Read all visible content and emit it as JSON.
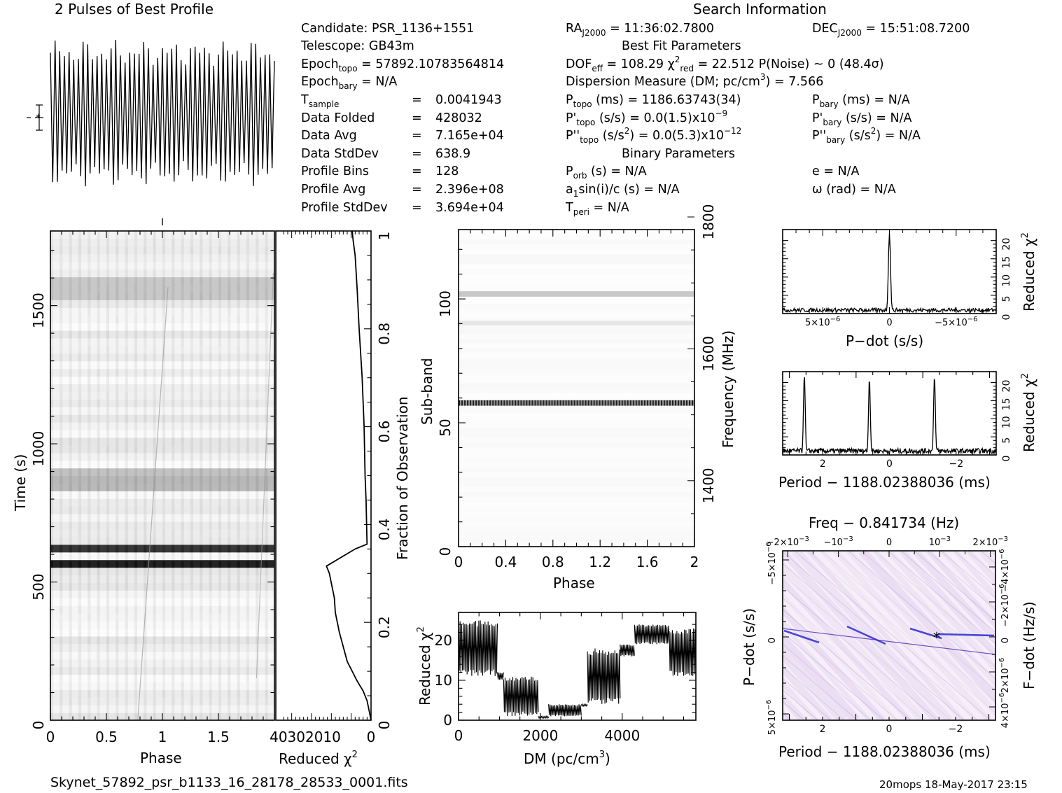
{
  "profile_title": "2 Pulses of Best Profile",
  "search_title": "Search Information",
  "footer_file": "Skynet_57892_psr_b1133_16_28178_28533_0001.fits",
  "footer_stamp": "20mops 18-May-2017 23:15",
  "info": {
    "candidate": "PSR_1136+1551",
    "telescope": "GB43m",
    "epoch_topo": "57892.10783564814",
    "epoch_bary": "N/A",
    "t_sample": "0.0041943",
    "data_folded": "428032",
    "data_avg": "7.165e+04",
    "data_stddev": "638.9",
    "profile_bins": "128",
    "profile_avg": "2.396e+08",
    "profile_stddev": "3.694e+04",
    "ra": "11:36:02.7800",
    "dec": "15:51:08.7200",
    "best_fit_header": "Best Fit Parameters",
    "dof_eff": "108.29",
    "chi2_red": "22.512",
    "p_noise": "0",
    "sigma": "(48.4σ)",
    "dm": "7.566",
    "p_topo_ms": "1186.63743(34)",
    "pd_topo": "0.0(1.5)",
    "pd_topo_exp": "−9",
    "pdd_topo": "0.0(5.3)",
    "pdd_topo_exp": "−12",
    "p_bary_ms": "N/A",
    "pd_bary": "N/A",
    "pdd_bary": "N/A",
    "binary_header": "Binary Parameters",
    "p_orb": "N/A",
    "a1sini": "N/A",
    "t_peri": "N/A",
    "e": "N/A",
    "omega": "N/A"
  },
  "chart_data": [
    {
      "id": "profile",
      "type": "line",
      "title": "2 Pulses of Best Profile",
      "xlim": [
        0,
        2
      ],
      "pulses": 2,
      "cycles_per_pulse": 24
    },
    {
      "id": "time_phase",
      "type": "heatmap",
      "xlabel": "Phase",
      "ylabel": "Time (s)",
      "xlim": [
        0,
        2
      ],
      "ylim": [
        0,
        1770
      ],
      "xticks": [
        "0",
        "0.5",
        "1",
        "1.5"
      ],
      "yticks": [
        "0",
        "500",
        "1000",
        "1500"
      ],
      "dark_band_times": [
        580,
        620
      ]
    },
    {
      "id": "chi2_vs_time",
      "type": "line",
      "xlabel": "Reduced χ",
      "ylabel": "Fraction of Observation",
      "xlim": [
        48,
        0
      ],
      "ylim": [
        0,
        1
      ],
      "xtick_labels": "40302010",
      "xtick_zero": "0",
      "yticks": [
        "0",
        "0.2",
        "0.4",
        "0.6",
        "0.8",
        "1"
      ],
      "points": [
        [
          0,
          0
        ],
        [
          1,
          0.02
        ],
        [
          2,
          0.04
        ],
        [
          4,
          0.06
        ],
        [
          7,
          0.08
        ],
        [
          12,
          0.12
        ],
        [
          16,
          0.18
        ],
        [
          18,
          0.22
        ],
        [
          18.5,
          0.25
        ],
        [
          20,
          0.28
        ],
        [
          21,
          0.3
        ],
        [
          22,
          0.31
        ],
        [
          22.5,
          0.315
        ],
        [
          8,
          0.35
        ],
        [
          2,
          0.36
        ],
        [
          2.5,
          0.45
        ],
        [
          3,
          0.5
        ],
        [
          3.5,
          0.6
        ],
        [
          4.5,
          0.7
        ],
        [
          6,
          0.8
        ],
        [
          7,
          0.88
        ],
        [
          8,
          0.95
        ],
        [
          9,
          0.98
        ],
        [
          9.5,
          1.0
        ]
      ]
    },
    {
      "id": "subband_phase",
      "type": "heatmap",
      "xlabel": "Phase",
      "ylabel": "Sub-band",
      "y2label": "Frequency (MHz)",
      "xlim": [
        0,
        2
      ],
      "ylim": [
        0,
        128
      ],
      "xticks": [
        "0",
        "0.4",
        "0.8",
        "1.2",
        "1.6",
        "2"
      ],
      "yticks": [
        "0",
        "50",
        "100"
      ],
      "y2ticks": [
        "1400",
        "1600",
        "1800"
      ],
      "rfi_subbands": [
        58,
        102,
        90
      ]
    },
    {
      "id": "chi2_vs_dm",
      "type": "line",
      "xlabel": "DM (pc/cm",
      "ylabel": "Reduced χ",
      "xlim": [
        0,
        5800
      ],
      "ylim": [
        0,
        27
      ],
      "xticks": [
        "0",
        "2000",
        "4000"
      ],
      "yticks": [
        "0",
        "10",
        "20"
      ],
      "segments": [
        {
          "dm": [
            0,
            950
          ],
          "lo": 11,
          "hi": 25
        },
        {
          "dm": [
            950,
            1100
          ],
          "lo": 10,
          "hi": 12
        },
        {
          "dm": [
            1100,
            1950
          ],
          "lo": 1,
          "hi": 11
        },
        {
          "dm": [
            1950,
            2200
          ],
          "lo": 0.5,
          "hi": 1
        },
        {
          "dm": [
            2200,
            3000
          ],
          "lo": 1,
          "hi": 4
        },
        {
          "dm": [
            3000,
            3150
          ],
          "lo": 3.5,
          "hi": 4
        },
        {
          "dm": [
            3150,
            3950
          ],
          "lo": 4,
          "hi": 18
        },
        {
          "dm": [
            3950,
            4300
          ],
          "lo": 16,
          "hi": 19
        },
        {
          "dm": [
            4300,
            5150
          ],
          "lo": 19,
          "hi": 24
        },
        {
          "dm": [
            5150,
            5800
          ],
          "lo": 11,
          "hi": 23
        }
      ]
    },
    {
      "id": "chi2_vs_pdot",
      "type": "line",
      "xlabel": "P−dot (s/s)",
      "ylabel": "Reduced χ",
      "xlim": [
        8e-06,
        -8e-06
      ],
      "ylim": [
        0,
        23
      ],
      "xticks": [
        "5×10",
        "0",
        "−5×10"
      ],
      "xtick_exp": "−6",
      "yticks": [
        "0",
        "5",
        "10",
        "15",
        "20"
      ],
      "peak": {
        "x": 0,
        "y": 22
      }
    },
    {
      "id": "chi2_vs_period",
      "type": "line",
      "xlabel": "Period − 1188.02388036 (ms)",
      "ylabel": "Reduced χ",
      "xlim": [
        3.2,
        -3.2
      ],
      "ylim": [
        0,
        23
      ],
      "xticks": [
        "2",
        "0",
        "−2"
      ],
      "yticks": [
        "0",
        "5",
        "10",
        "15",
        "20"
      ],
      "peaks": [
        {
          "x": 2.55,
          "y": 22
        },
        {
          "x": 0.6,
          "y": 21
        },
        {
          "x": -1.35,
          "y": 21.5
        }
      ]
    },
    {
      "id": "pdot_period_map",
      "type": "heatmap",
      "title": "Freq − 0.841734 (Hz)",
      "xlabel": "Period − 1188.02388036 (ms)",
      "ylabel": "P−dot (s/s)",
      "y2label": "F−dot (Hz/s)",
      "xticks": [
        "2",
        "0",
        "−2"
      ],
      "topticks": [
        "−2×10",
        "−10",
        "0",
        "10",
        "2×10"
      ],
      "top_exp": "−3",
      "yticks": [
        "−5×10",
        "0",
        "5×10"
      ],
      "y_exp": "−6",
      "y2ticks": [
        "−4×10",
        "−2×10",
        "0",
        "2×10",
        "4×10"
      ],
      "y2_exp": "−6",
      "color": "#5a3dbf"
    }
  ]
}
